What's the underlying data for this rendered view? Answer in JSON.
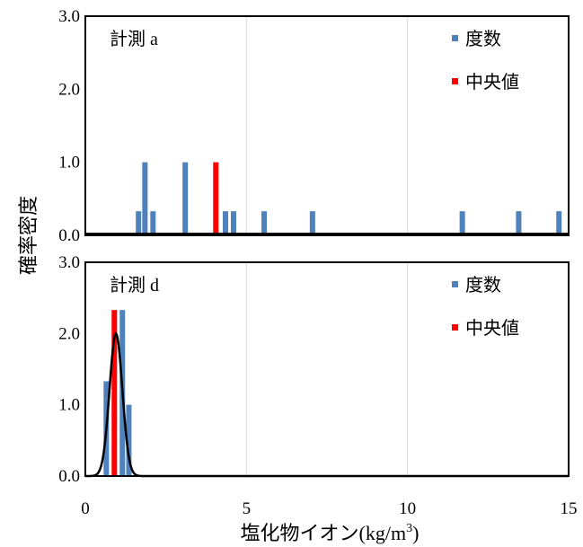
{
  "chart_data": {
    "type": "bar",
    "ylabel": "確率密度",
    "xlabel": "塩化物イオン(kg/m",
    "xlabel_sup": "3",
    "xlabel_end": ")",
    "xlim": [
      0,
      15
    ],
    "ylim": [
      0,
      3
    ],
    "x_ticks": [
      0,
      5,
      10,
      15
    ],
    "x_tick_labels": [
      "0",
      "5",
      "10",
      "15"
    ],
    "y_ticks": [
      0,
      1,
      2,
      3
    ],
    "y_tick_labels": [
      "0.0",
      "1.0",
      "2.0",
      "3.0"
    ],
    "grid": "vertical",
    "legend_placement": "top-right",
    "colors": {
      "frequency": "#4f81bd",
      "median": "#ff0000",
      "curve": "#000000"
    },
    "panels": [
      {
        "label": "計測 a",
        "legend": [
          "度数",
          "中央値"
        ],
        "frequency_bars": [
          {
            "x": 1.65,
            "y": 0.33
          },
          {
            "x": 1.85,
            "y": 1.0
          },
          {
            "x": 2.1,
            "y": 0.33
          },
          {
            "x": 3.1,
            "y": 1.0
          },
          {
            "x": 4.35,
            "y": 0.33
          },
          {
            "x": 4.6,
            "y": 0.33
          },
          {
            "x": 5.55,
            "y": 0.33
          },
          {
            "x": 7.05,
            "y": 0.33
          },
          {
            "x": 11.7,
            "y": 0.33
          },
          {
            "x": 13.45,
            "y": 0.33
          },
          {
            "x": 14.7,
            "y": 0.33
          }
        ],
        "median_bar": {
          "x": 4.05,
          "y": 1.0
        },
        "curve": {
          "mean": 5.6,
          "sd": 40.0,
          "scale": 2.0
        }
      },
      {
        "label": "計測 d",
        "legend": [
          "度数",
          "中央値"
        ],
        "frequency_bars": [
          {
            "x": 0.65,
            "y": 1.33
          },
          {
            "x": 1.15,
            "y": 2.33
          },
          {
            "x": 1.35,
            "y": 1.0
          }
        ],
        "median_bar": {
          "x": 0.9,
          "y": 2.33
        },
        "curve": {
          "mean": 0.95,
          "sd": 0.2,
          "peak": 2.0
        }
      }
    ]
  }
}
